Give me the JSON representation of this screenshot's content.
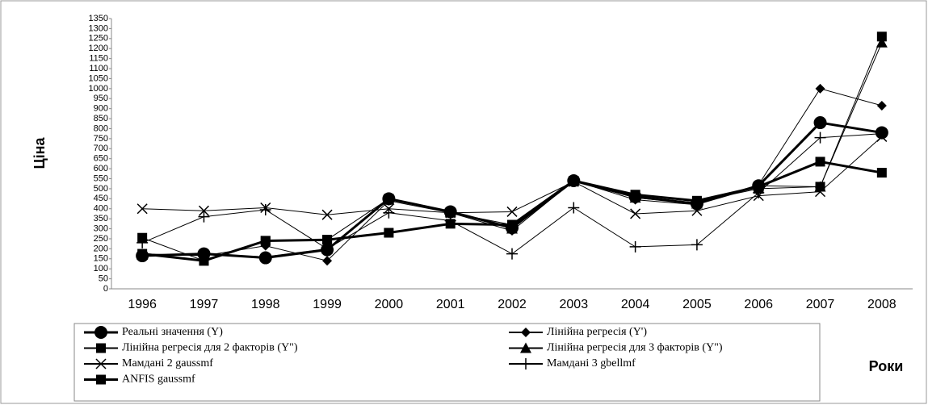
{
  "chart_data": {
    "type": "line",
    "y_label": "Ціна",
    "x_label": "Роки",
    "categories": [
      "1996",
      "1997",
      "1998",
      "1999",
      "2000",
      "2001",
      "2002",
      "2003",
      "2004",
      "2005",
      "2006",
      "2007",
      "2008"
    ],
    "ylim": [
      0,
      1350
    ],
    "yticks": [
      0,
      50,
      100,
      150,
      200,
      250,
      300,
      350,
      400,
      450,
      500,
      550,
      600,
      650,
      700,
      750,
      800,
      850,
      900,
      950,
      1000,
      1050,
      1100,
      1150,
      1200,
      1250,
      1300,
      1350
    ],
    "series": [
      {
        "name": "Реальні значення (Y)",
        "color": "#000000",
        "marker": "circle",
        "values": [
          165,
          175,
          155,
          195,
          450,
          385,
          305,
          540,
          460,
          425,
          515,
          830,
          780
        ]
      },
      {
        "name": "Лінійна регресія (Y')",
        "color": "#000000",
        "marker": "diamond",
        "values": [
          175,
          165,
          215,
          140,
          440,
          380,
          290,
          540,
          445,
          420,
          520,
          1000,
          915
        ]
      },
      {
        "name": "Лінійна регресія для 2 факторів (Y\")",
        "color": "#000000",
        "marker": "square",
        "values": [
          255,
          140,
          240,
          245,
          450,
          380,
          320,
          540,
          470,
          435,
          500,
          510,
          1260
        ]
      },
      {
        "name": "Лінійна регресія для 3 факторів (Y\")",
        "color": "#000000",
        "marker": "triangle",
        "values": [
          170,
          170,
          160,
          200,
          445,
          385,
          300,
          540,
          455,
          425,
          515,
          510,
          1230
        ]
      },
      {
        "name": "Мамдані 2 gaussmf",
        "color": "#000000",
        "marker": "x",
        "values": [
          400,
          390,
          405,
          370,
          400,
          380,
          385,
          535,
          375,
          390,
          465,
          485,
          760
        ]
      },
      {
        "name": "Мамдані 3 gbellmf",
        "color": "#000000",
        "marker": "plus",
        "values": [
          230,
          360,
          395,
          200,
          380,
          340,
          175,
          405,
          210,
          220,
          480,
          755,
          775
        ]
      },
      {
        "name": "ANFIS gaussmf",
        "color": "#000000",
        "marker": "square",
        "values": [
          175,
          140,
          240,
          245,
          280,
          325,
          320,
          540,
          470,
          440,
          510,
          635,
          580
        ]
      }
    ]
  }
}
